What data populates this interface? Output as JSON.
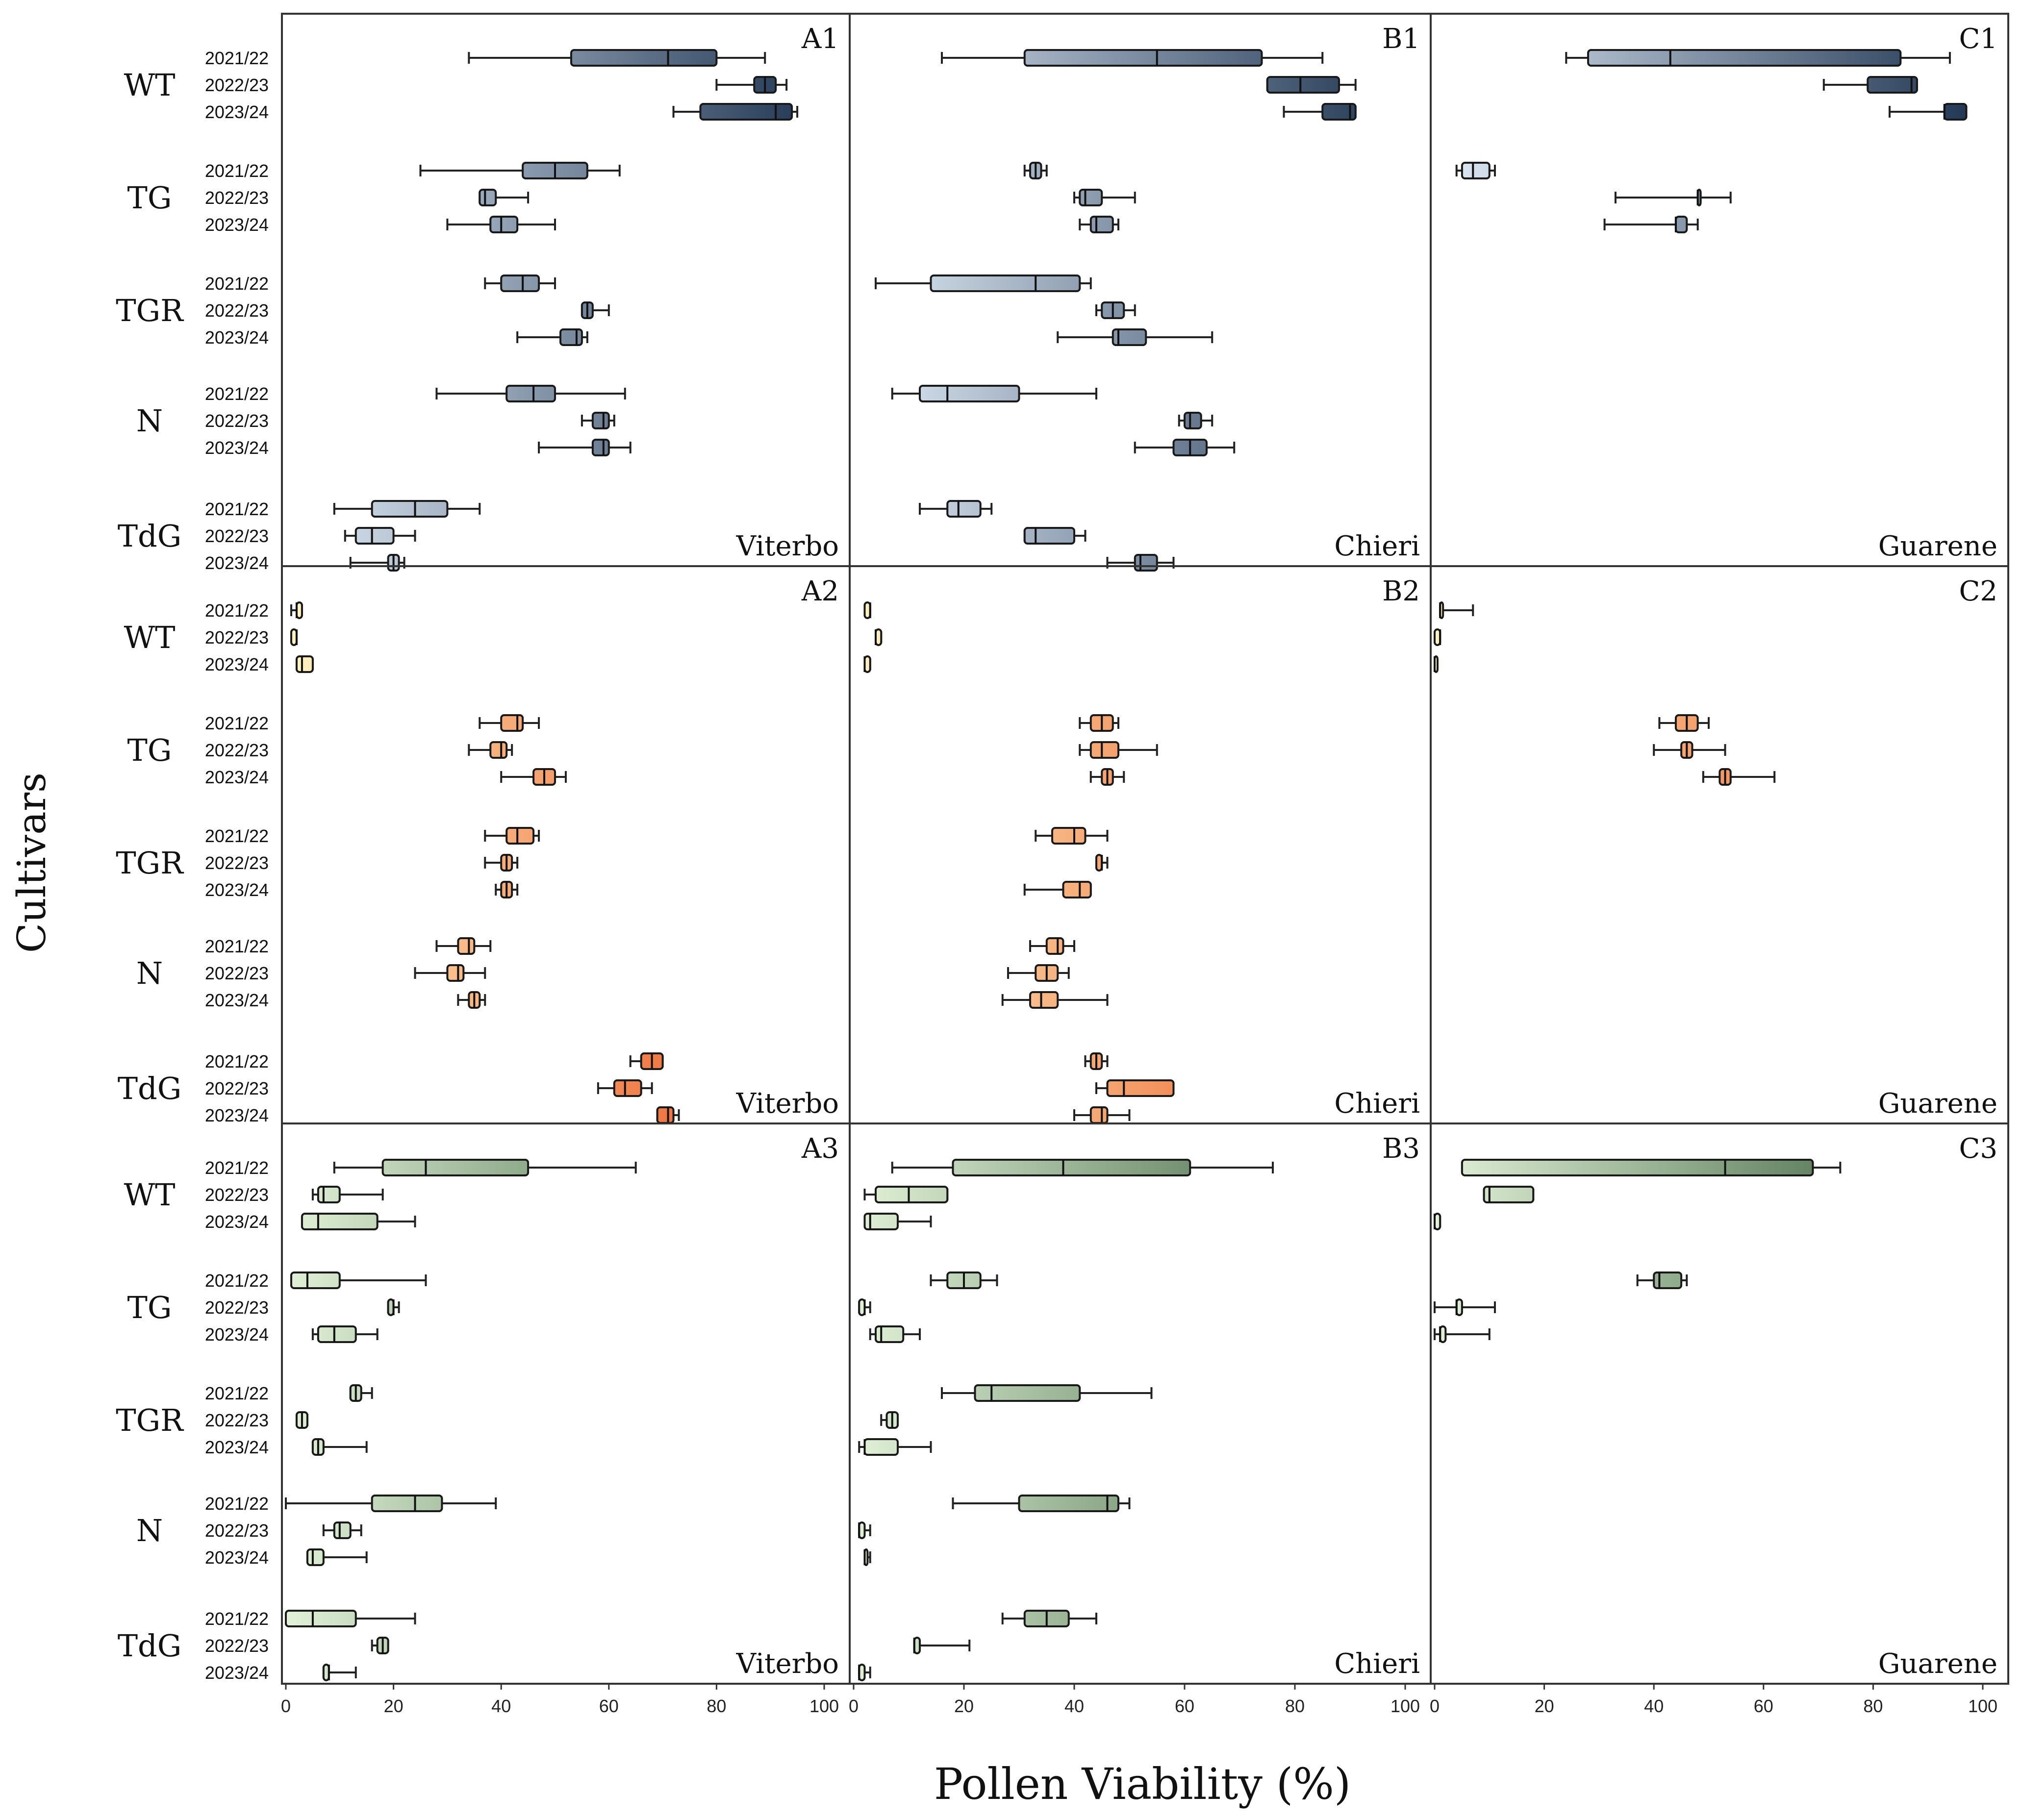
{
  "chart_data": {
    "type": "boxplot",
    "title": "",
    "xlabel": "Pollen Viability (%)",
    "ylabel": "Cultivars",
    "xlim": [
      0,
      100
    ],
    "xticks": [
      0,
      20,
      40,
      60,
      80,
      100
    ],
    "cultivars": [
      "WT",
      "TG",
      "TGR",
      "N",
      "TdG"
    ],
    "years": [
      "2021/22",
      "2022/23",
      "2023/24"
    ],
    "colors": {
      "row1": [
        "#e2edf8",
        "#1d3350"
      ],
      "row2": [
        "#fff4c4",
        "#e8450f"
      ],
      "row3": [
        "#e2f2d8",
        "#2c532f"
      ],
      "frame": "#333333",
      "text": "#111111"
    },
    "panels": [
      {
        "id": "A1",
        "site": "Viterbo",
        "row": 0,
        "col": 0,
        "boxes": [
          [
            [
              34,
              53,
              71,
              80,
              89
            ],
            [
              80,
              87,
              89,
              91,
              93
            ],
            [
              72,
              77,
              91,
              94,
              95
            ]
          ],
          [
            [
              25,
              44,
              50,
              56,
              62
            ],
            [
              36,
              36,
              37,
              39,
              45
            ],
            [
              30,
              38,
              40,
              43,
              50
            ]
          ],
          [
            [
              37,
              40,
              44,
              47,
              50
            ],
            [
              55,
              55,
              56,
              57,
              60
            ],
            [
              43,
              51,
              54,
              55,
              56
            ]
          ],
          [
            [
              28,
              41,
              46,
              50,
              63
            ],
            [
              55,
              57,
              59,
              60,
              61
            ],
            [
              47,
              57,
              59,
              60,
              64
            ]
          ],
          [
            [
              9,
              16,
              24,
              30,
              36
            ],
            [
              11,
              13,
              16,
              20,
              24
            ],
            [
              12,
              19,
              20,
              21,
              22
            ]
          ]
        ]
      },
      {
        "id": "B1",
        "site": "Chieri",
        "row": 0,
        "col": 1,
        "boxes": [
          [
            [
              16,
              31,
              55,
              74,
              85
            ],
            [
              75,
              75,
              81,
              88,
              91
            ],
            [
              78,
              85,
              90,
              91,
              91
            ]
          ],
          [
            [
              31,
              32,
              33,
              34,
              35
            ],
            [
              40,
              41,
              42,
              45,
              51
            ],
            [
              41,
              43,
              44,
              47,
              48
            ]
          ],
          [
            [
              4,
              14,
              33,
              41,
              43
            ],
            [
              44,
              45,
              47,
              49,
              51
            ],
            [
              37,
              47,
              48,
              53,
              65
            ]
          ],
          [
            [
              7,
              12,
              17,
              30,
              44
            ],
            [
              59,
              60,
              61,
              63,
              65
            ],
            [
              51,
              58,
              61,
              64,
              69
            ]
          ],
          [
            [
              12,
              17,
              19,
              23,
              25
            ],
            [
              31,
              31,
              33,
              40,
              42
            ],
            [
              46,
              51,
              52,
              55,
              58
            ]
          ]
        ]
      },
      {
        "id": "C1",
        "site": "Guarene",
        "row": 0,
        "col": 2,
        "boxes": [
          [
            [
              24,
              28,
              43,
              85,
              94
            ],
            [
              71,
              79,
              87,
              88,
              88
            ],
            [
              83,
              93,
              93,
              97,
              97
            ]
          ],
          [
            [
              4,
              5,
              7,
              10,
              11
            ],
            [
              33,
              48,
              48,
              48,
              54
            ],
            [
              31,
              44,
              44,
              46,
              48
            ]
          ],
          null,
          null,
          null
        ]
      },
      {
        "id": "A2",
        "site": "Viterbo",
        "row": 1,
        "col": 0,
        "boxes": [
          [
            [
              1,
              2,
              2,
              3,
              3
            ],
            [
              1,
              1,
              2,
              2,
              2
            ],
            [
              2,
              2,
              3,
              5,
              5
            ]
          ],
          [
            [
              36,
              40,
              43,
              44,
              47
            ],
            [
              34,
              38,
              40,
              41,
              42
            ],
            [
              40,
              46,
              48,
              50,
              52
            ]
          ],
          [
            [
              37,
              41,
              43,
              46,
              47
            ],
            [
              37,
              40,
              41,
              42,
              43
            ],
            [
              39,
              40,
              41,
              42,
              43
            ]
          ],
          [
            [
              28,
              32,
              34,
              35,
              38
            ],
            [
              24,
              30,
              32,
              33,
              37
            ],
            [
              32,
              34,
              35,
              36,
              37
            ]
          ],
          [
            [
              64,
              66,
              68,
              70,
              70
            ],
            [
              58,
              61,
              63,
              66,
              68
            ],
            [
              69,
              69,
              71,
              72,
              73
            ]
          ]
        ]
      },
      {
        "id": "B2",
        "site": "Chieri",
        "row": 1,
        "col": 1,
        "boxes": [
          [
            [
              2,
              2,
              3,
              3,
              3
            ],
            [
              4,
              4,
              4,
              5,
              5
            ],
            [
              2,
              2,
              2,
              3,
              3
            ]
          ],
          [
            [
              41,
              43,
              45,
              47,
              48
            ],
            [
              41,
              43,
              45,
              48,
              55
            ],
            [
              43,
              45,
              46,
              47,
              49
            ]
          ],
          [
            [
              33,
              36,
              40,
              42,
              46
            ],
            [
              44,
              44,
              45,
              45,
              46
            ],
            [
              31,
              38,
              41,
              43,
              43
            ]
          ],
          [
            [
              32,
              35,
              37,
              38,
              40
            ],
            [
              28,
              33,
              35,
              37,
              39
            ],
            [
              27,
              32,
              34,
              37,
              46
            ]
          ],
          [
            [
              42,
              43,
              44,
              45,
              46
            ],
            [
              44,
              46,
              49,
              58,
              58
            ],
            [
              40,
              43,
              45,
              46,
              50
            ]
          ]
        ]
      },
      {
        "id": "C2",
        "site": "Guarene",
        "row": 1,
        "col": 2,
        "boxes": [
          [
            [
              1,
              1,
              1,
              1,
              7
            ],
            [
              0,
              0,
              1,
              1,
              1
            ],
            [
              0,
              0,
              0,
              0,
              0
            ]
          ],
          [
            [
              41,
              44,
              46,
              48,
              50
            ],
            [
              40,
              45,
              46,
              47,
              53
            ],
            [
              49,
              52,
              53,
              54,
              62
            ]
          ],
          null,
          null,
          null
        ]
      },
      {
        "id": "A3",
        "site": "Viterbo",
        "row": 2,
        "col": 0,
        "boxes": [
          [
            [
              9,
              18,
              26,
              45,
              65
            ],
            [
              5,
              6,
              7,
              10,
              18
            ],
            [
              3,
              3,
              6,
              17,
              24
            ]
          ],
          [
            [
              1,
              1,
              4,
              10,
              26
            ],
            [
              19,
              19,
              20,
              20,
              21
            ],
            [
              5,
              6,
              9,
              13,
              17
            ]
          ],
          [
            [
              12,
              12,
              13,
              14,
              16
            ],
            [
              2,
              2,
              3,
              4,
              4
            ],
            [
              5,
              5,
              6,
              7,
              15
            ]
          ],
          [
            [
              0,
              16,
              24,
              29,
              39
            ],
            [
              7,
              9,
              10,
              12,
              14
            ],
            [
              4,
              4,
              5,
              7,
              15
            ]
          ],
          [
            [
              0,
              0,
              5,
              13,
              24
            ],
            [
              16,
              17,
              18,
              19,
              19
            ],
            [
              7,
              7,
              8,
              8,
              13
            ]
          ]
        ]
      },
      {
        "id": "B3",
        "site": "Chieri",
        "row": 2,
        "col": 1,
        "boxes": [
          [
            [
              7,
              18,
              38,
              61,
              76
            ],
            [
              2,
              4,
              10,
              17,
              17
            ],
            [
              2,
              2,
              3,
              8,
              14
            ]
          ],
          [
            [
              14,
              17,
              20,
              23,
              26
            ],
            [
              1,
              1,
              2,
              2,
              3
            ],
            [
              3,
              4,
              5,
              9,
              12
            ]
          ],
          [
            [
              16,
              22,
              25,
              41,
              54
            ],
            [
              5,
              6,
              7,
              8,
              8
            ],
            [
              1,
              2,
              2,
              8,
              14
            ]
          ],
          [
            [
              18,
              30,
              46,
              48,
              50
            ],
            [
              1,
              1,
              1,
              2,
              3
            ],
            [
              2,
              2,
              2,
              2,
              3
            ]
          ],
          [
            [
              27,
              31,
              35,
              39,
              44
            ],
            [
              11,
              11,
              11,
              12,
              21
            ],
            [
              1,
              1,
              1,
              2,
              3
            ]
          ]
        ]
      },
      {
        "id": "C3",
        "site": "Guarene",
        "row": 2,
        "col": 2,
        "boxes": [
          [
            [
              5,
              5,
              53,
              69,
              74
            ],
            [
              9,
              9,
              10,
              18,
              18
            ],
            [
              0,
              0,
              0,
              1,
              1
            ]
          ],
          [
            [
              37,
              40,
              41,
              45,
              46
            ],
            [
              0,
              4,
              4,
              5,
              11
            ],
            [
              0,
              1,
              1,
              2,
              10
            ]
          ],
          null,
          null,
          null
        ]
      }
    ]
  }
}
